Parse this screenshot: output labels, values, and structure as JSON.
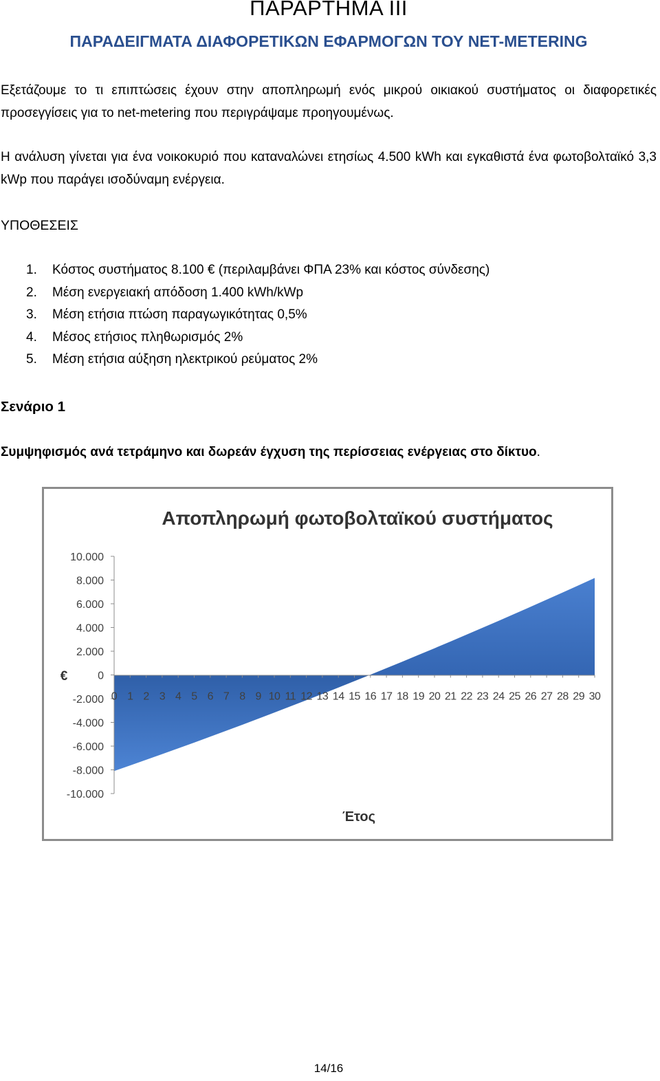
{
  "appendix": {
    "title": "ΠΑΡΑΡΤΗΜΑ ΙΙΙ",
    "subtitle": "ΠΑΡΑΔΕΙΓΜΑΤΑ ΔΙΑΦΟΡΕΤΙΚΩΝ ΕΦΑΡΜΟΓΩΝ ΤΟΥ NET-METERING"
  },
  "intro": {
    "p1": "Εξετάζουμε το τι επιπτώσεις έχουν στην αποπληρωμή ενός μικρού οικιακού συστήματος οι διαφορετικές προσεγγίσεις για το net-metering που περιγράψαμε προηγουμένως.",
    "p2": "Η ανάλυση γίνεται για ένα νοικοκυριό που καταναλώνει ετησίως 4.500 kWh και εγκαθιστά ένα φωτοβολταϊκό 3,3 kWp που παράγει ισοδύναμη ενέργεια."
  },
  "assumptions": {
    "heading": "ΥΠΟΘΕΣΕΙΣ",
    "items": [
      {
        "num": "1.",
        "text": "Κόστος συστήματος 8.100 € (περιλαμβάνει ΦΠΑ 23% και κόστος σύνδεσης)"
      },
      {
        "num": "2.",
        "text": "Μέση ενεργειακή απόδοση 1.400 kWh/kWp"
      },
      {
        "num": "3.",
        "text": "Μέση ετήσια πτώση παραγωγικότητας 0,5%"
      },
      {
        "num": "4.",
        "text": "Μέσος ετήσιος πληθωρισμός 2%"
      },
      {
        "num": "5.",
        "text": "Μέση ετήσια αύξηση ηλεκτρικού ρεύματος 2%"
      }
    ]
  },
  "scenario": {
    "heading": "Σενάριο 1",
    "description": "Συμψηφισμός ανά τετράμηνο και δωρεάν έγχυση της περίσσειας ενέργειας στο δίκτυο",
    "period": "."
  },
  "chart_data": {
    "type": "area",
    "title": "Αποπληρωμή φωτοβολταϊκού συστήματος",
    "xlabel": "Έτος",
    "ylabel": "€",
    "x": [
      0,
      1,
      2,
      3,
      4,
      5,
      6,
      7,
      8,
      9,
      10,
      11,
      12,
      13,
      14,
      15,
      16,
      17,
      18,
      19,
      20,
      21,
      22,
      23,
      24,
      25,
      26,
      27,
      28,
      29,
      30
    ],
    "y": [
      -8100,
      -7630,
      -7155,
      -6675,
      -6190,
      -5700,
      -5205,
      -4705,
      -4200,
      -3690,
      -3175,
      -2655,
      -2130,
      -1600,
      -1065,
      -525,
      20,
      570,
      1125,
      1685,
      2250,
      2820,
      3395,
      3975,
      4560,
      5150,
      5745,
      6345,
      6950,
      7560,
      8175
    ],
    "yticks": [
      "10.000",
      "8.000",
      "6.000",
      "4.000",
      "2.000",
      "0",
      "-2.000",
      "-4.000",
      "-6.000",
      "-8.000",
      "-10.000"
    ],
    "ylim": [
      -10000,
      10000
    ],
    "xlim": [
      0,
      30
    ],
    "color": "#4a7cc9",
    "grid": false,
    "legend": "none"
  },
  "footer": {
    "page": "14/16"
  }
}
